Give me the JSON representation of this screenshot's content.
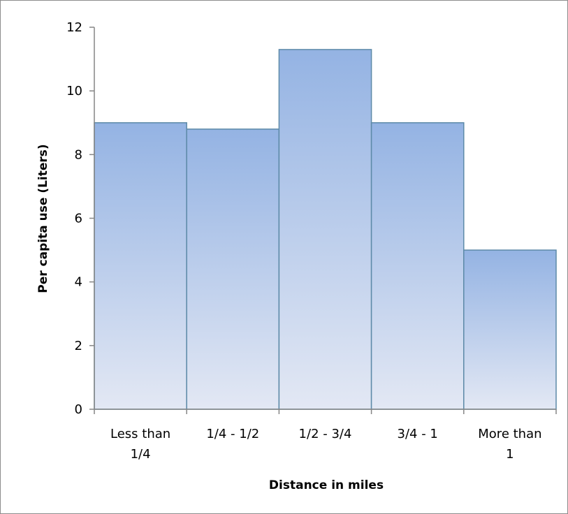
{
  "chart_data": {
    "type": "bar",
    "title": "",
    "xlabel": "Distance in miles",
    "ylabel": "Per capita use (Liters)",
    "categories": [
      [
        "Less than",
        "1/4"
      ],
      [
        "1/4 - 1/2"
      ],
      [
        "1/2 - 3/4"
      ],
      [
        "3/4 - 1"
      ],
      [
        "More than",
        "1"
      ]
    ],
    "values": [
      9,
      8.8,
      11.3,
      9,
      5
    ],
    "ylim": [
      0,
      12
    ],
    "yticks": [
      0,
      2,
      4,
      6,
      8,
      10,
      12
    ],
    "gap_width": 0,
    "grid": false,
    "legend": "none",
    "bar_fill_top": "#94b3e3",
    "bar_fill_bottom": "#e3e8f4",
    "bar_stroke": "#5d8aa8",
    "axis_color": "#868686"
  }
}
